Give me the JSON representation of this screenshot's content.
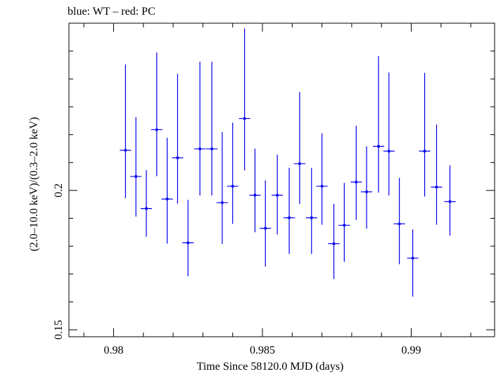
{
  "chart_data": {
    "type": "scatter",
    "title": "blue: WT – red: PC",
    "xlabel": "Time Since 58120.0 MJD (days)",
    "ylabel": "(2.0–10.0 keV)/(0.3–2.0 keV)",
    "xlim": [
      0.9785,
      0.9928
    ],
    "ylim": [
      0.1475,
      0.26
    ],
    "x_ticks_major": [
      0.98,
      0.985,
      0.99
    ],
    "x_tick_labels": [
      "0.98",
      "0.985",
      "0.99"
    ],
    "y_ticks_major": [
      0.15,
      0.2
    ],
    "y_tick_labels": [
      "0.15",
      "0.2"
    ],
    "series_color": "#0000ee",
    "series": [
      {
        "name": "WT",
        "x_err": 0.00019,
        "points": [
          {
            "x": 0.9804,
            "y": 0.2144,
            "ylo": 0.1972,
            "yhi": 0.2452
          },
          {
            "x": 0.98075,
            "y": 0.205,
            "ylo": 0.1906,
            "yhi": 0.2263
          },
          {
            "x": 0.9811,
            "y": 0.1935,
            "ylo": 0.1834,
            "yhi": 0.2073
          },
          {
            "x": 0.98145,
            "y": 0.2218,
            "ylo": 0.2051,
            "yhi": 0.2495
          },
          {
            "x": 0.9818,
            "y": 0.1969,
            "ylo": 0.1809,
            "yhi": 0.2189
          },
          {
            "x": 0.98215,
            "y": 0.2117,
            "ylo": 0.1953,
            "yhi": 0.2418
          },
          {
            "x": 0.9825,
            "y": 0.1812,
            "ylo": 0.1692,
            "yhi": 0.1966
          },
          {
            "x": 0.9829,
            "y": 0.2149,
            "ylo": 0.1982,
            "yhi": 0.2462
          },
          {
            "x": 0.9833,
            "y": 0.2149,
            "ylo": 0.1982,
            "yhi": 0.2462
          },
          {
            "x": 0.98365,
            "y": 0.1956,
            "ylo": 0.1808,
            "yhi": 0.2209
          },
          {
            "x": 0.984,
            "y": 0.2015,
            "ylo": 0.188,
            "yhi": 0.2243
          },
          {
            "x": 0.9844,
            "y": 0.2258,
            "ylo": 0.2072,
            "yhi": 0.2581
          },
          {
            "x": 0.98475,
            "y": 0.1983,
            "ylo": 0.185,
            "yhi": 0.215
          },
          {
            "x": 0.9851,
            "y": 0.1864,
            "ylo": 0.1727,
            "yhi": 0.2036
          },
          {
            "x": 0.9855,
            "y": 0.1983,
            "ylo": 0.1842,
            "yhi": 0.2128
          },
          {
            "x": 0.9859,
            "y": 0.1902,
            "ylo": 0.1772,
            "yhi": 0.2081
          },
          {
            "x": 0.98625,
            "y": 0.2096,
            "ylo": 0.1951,
            "yhi": 0.2353
          },
          {
            "x": 0.98665,
            "y": 0.1902,
            "ylo": 0.1772,
            "yhi": 0.2081
          },
          {
            "x": 0.987,
            "y": 0.2015,
            "ylo": 0.1877,
            "yhi": 0.2205
          },
          {
            "x": 0.9874,
            "y": 0.1809,
            "ylo": 0.1682,
            "yhi": 0.1952
          },
          {
            "x": 0.98775,
            "y": 0.1875,
            "ylo": 0.1744,
            "yhi": 0.2027
          },
          {
            "x": 0.98815,
            "y": 0.203,
            "ylo": 0.1894,
            "yhi": 0.2232
          },
          {
            "x": 0.9885,
            "y": 0.1995,
            "ylo": 0.1863,
            "yhi": 0.2158
          },
          {
            "x": 0.9889,
            "y": 0.2158,
            "ylo": 0.1992,
            "yhi": 0.2482
          },
          {
            "x": 0.98925,
            "y": 0.2141,
            "ylo": 0.1982,
            "yhi": 0.2423
          },
          {
            "x": 0.9896,
            "y": 0.188,
            "ylo": 0.1735,
            "yhi": 0.2045
          },
          {
            "x": 0.99005,
            "y": 0.1757,
            "ylo": 0.1619,
            "yhi": 0.186
          },
          {
            "x": 0.99045,
            "y": 0.2141,
            "ylo": 0.1978,
            "yhi": 0.2422
          },
          {
            "x": 0.99085,
            "y": 0.2012,
            "ylo": 0.1877,
            "yhi": 0.2236
          },
          {
            "x": 0.9913,
            "y": 0.196,
            "ylo": 0.1838,
            "yhi": 0.209
          }
        ]
      }
    ]
  }
}
